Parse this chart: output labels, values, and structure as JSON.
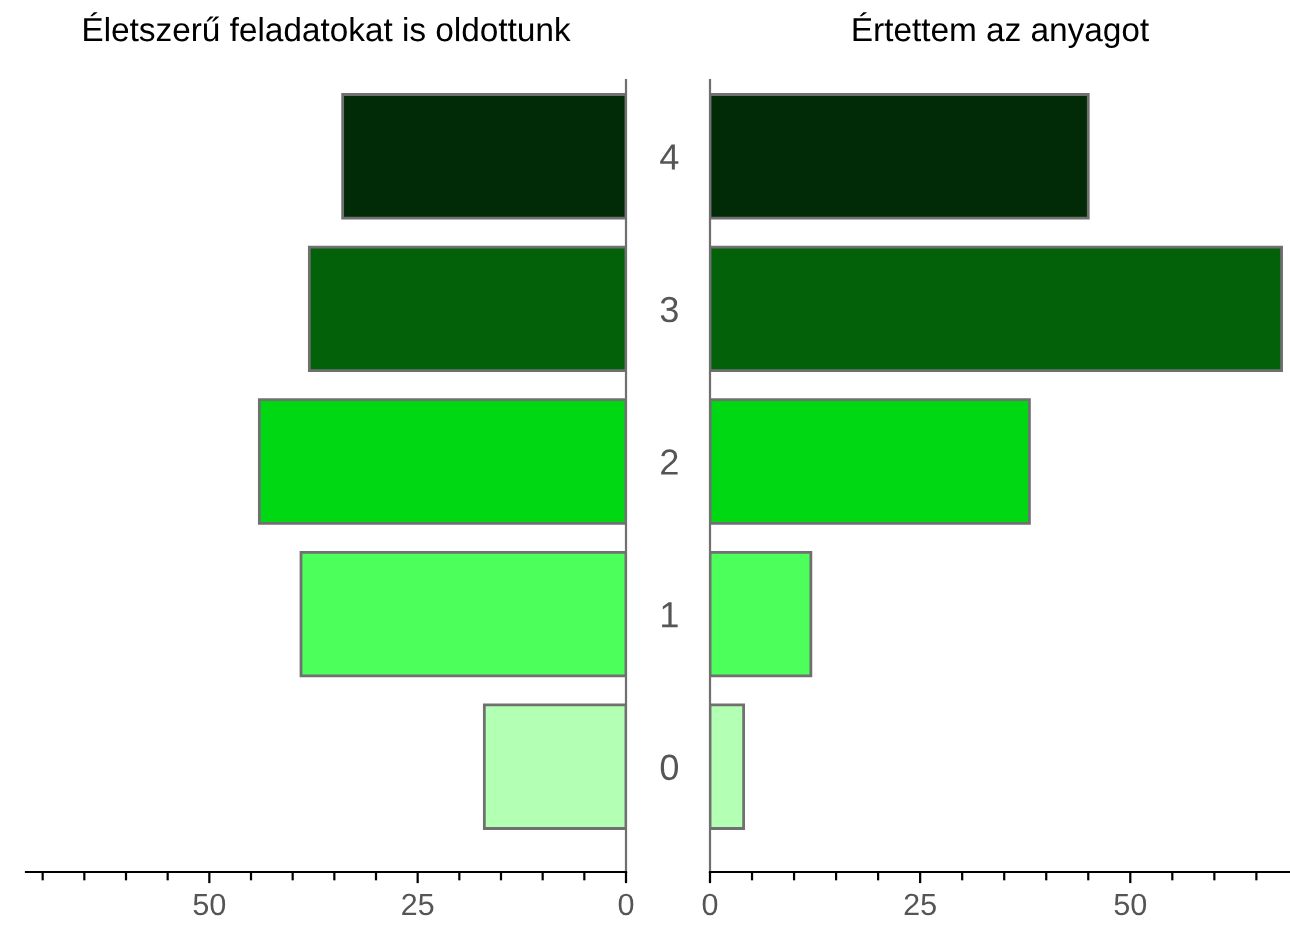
{
  "chart_data": [
    {
      "type": "bar",
      "orientation": "horizontal",
      "title": "Életszerű feladatokat is oldottunk",
      "categories": [
        "4",
        "3",
        "2",
        "1",
        "0"
      ],
      "values": [
        34,
        38,
        44,
        39,
        17
      ],
      "colors": [
        "#002b06",
        "#036209",
        "#00d813",
        "#4cff5a",
        "#b3ffb3"
      ],
      "xlim": [
        72,
        0
      ],
      "xticks": [
        {
          "value": 70,
          "label": null
        },
        {
          "value": 65,
          "label": null
        },
        {
          "value": 60,
          "label": null
        },
        {
          "value": 55,
          "label": null
        },
        50,
        {
          "value": 45,
          "label": null
        },
        {
          "value": 40,
          "label": null
        },
        {
          "value": 35,
          "label": null
        },
        {
          "value": 30,
          "label": null
        },
        25,
        {
          "value": 20,
          "label": null
        },
        {
          "value": 15,
          "label": null
        },
        {
          "value": 10,
          "label": null
        },
        {
          "value": 5,
          "label": null
        },
        0
      ],
      "grid": false,
      "legend": false
    },
    {
      "type": "bar",
      "orientation": "horizontal",
      "title": "Értettem az anyagot",
      "categories": [
        "4",
        "3",
        "2",
        "1",
        "0"
      ],
      "values": [
        45,
        68,
        38,
        12,
        4
      ],
      "colors": [
        "#002b06",
        "#036209",
        "#00d813",
        "#4cff5a",
        "#b3ffb3"
      ],
      "xlim": [
        0,
        69
      ],
      "xticks": [
        0,
        {
          "value": 5,
          "label": null
        },
        {
          "value": 10,
          "label": null
        },
        {
          "value": 15,
          "label": null
        },
        {
          "value": 20,
          "label": null
        },
        25,
        {
          "value": 30,
          "label": null
        },
        {
          "value": 35,
          "label": null
        },
        {
          "value": 40,
          "label": null
        },
        {
          "value": 45,
          "label": null
        },
        50,
        {
          "value": 55,
          "label": null
        },
        {
          "value": 60,
          "label": null
        },
        {
          "value": 65,
          "label": null
        }
      ],
      "tick_labels": "x",
      "grid": false,
      "legend": false
    }
  ]
}
